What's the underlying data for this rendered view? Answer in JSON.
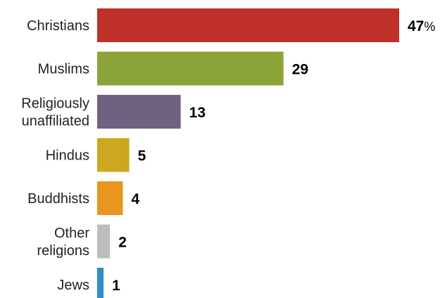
{
  "chart_data": {
    "type": "bar",
    "orientation": "horizontal",
    "categories": [
      [
        "Christians"
      ],
      [
        "Muslims"
      ],
      [
        "Religiously",
        "unaffiliated"
      ],
      [
        "Hindus"
      ],
      [
        "Buddhists"
      ],
      [
        "Other",
        "religions"
      ],
      [
        "Jews"
      ]
    ],
    "values": [
      47,
      29,
      13,
      5,
      4,
      2,
      1
    ],
    "value_labels": [
      "47",
      "29",
      "13",
      "5",
      "4",
      "2",
      "1"
    ],
    "value_suffix_first": "%",
    "unit": "%",
    "colors": [
      "#c0312b",
      "#8ba43a",
      "#6e6280",
      "#cda720",
      "#e9961e",
      "#bdbdbd",
      "#2e8ec9"
    ],
    "xlim": [
      0,
      47
    ],
    "title": "",
    "xlabel": "",
    "ylabel": "",
    "grid": false,
    "legend": "none"
  }
}
